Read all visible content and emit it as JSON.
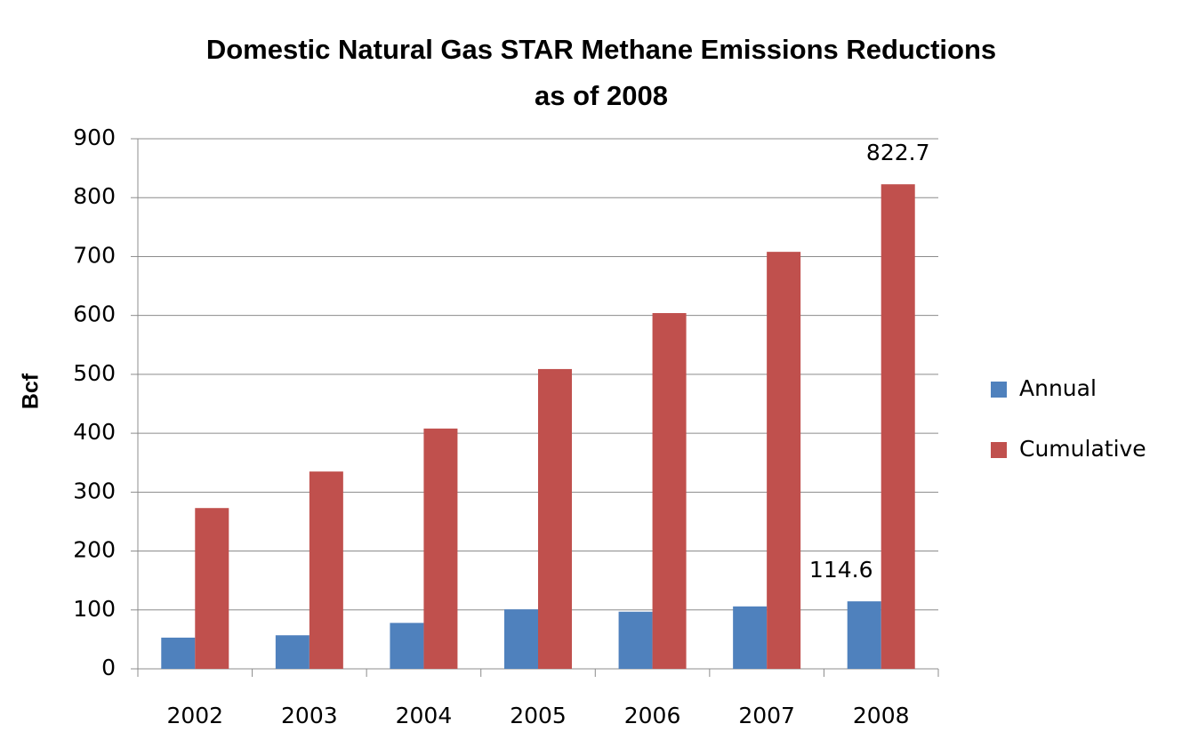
{
  "chart_data": {
    "type": "bar",
    "title": [
      "Domestic Natural Gas STAR Methane Emissions Reductions",
      "as of 2008"
    ],
    "y_label": "Bcf",
    "categories": [
      "2002",
      "2003",
      "2004",
      "2005",
      "2006",
      "2007",
      "2008"
    ],
    "series": [
      {
        "name": "Annual",
        "color": "#4f81bd",
        "values": [
          53,
          57,
          78,
          101,
          97,
          106,
          114.6
        ],
        "value_labels": [
          null,
          null,
          null,
          null,
          null,
          null,
          "114.6"
        ]
      },
      {
        "name": "Cumulative",
        "color": "#c0504d",
        "values": [
          273,
          335,
          408,
          509,
          604,
          708,
          822.7
        ],
        "value_labels": [
          null,
          null,
          null,
          null,
          null,
          null,
          "822.7"
        ]
      }
    ],
    "ylim": [
      0,
      900
    ],
    "yticks": [
      0,
      100,
      200,
      300,
      400,
      500,
      600,
      700,
      800,
      900
    ],
    "grid": true,
    "legend": "right"
  }
}
